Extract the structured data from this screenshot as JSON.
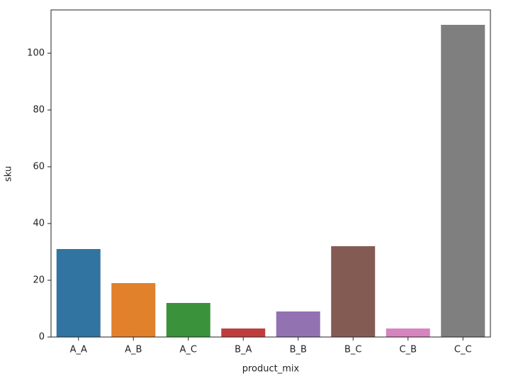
{
  "chart_data": {
    "type": "bar",
    "x_label": "product_mix",
    "y_label": "sku",
    "categories": [
      "A_A",
      "A_B",
      "A_C",
      "B_A",
      "B_B",
      "B_C",
      "C_B",
      "C_C"
    ],
    "values": [
      31,
      19,
      12,
      3,
      9,
      32,
      3,
      110
    ],
    "colors": [
      "#3274a1",
      "#e1812c",
      "#3a923a",
      "#c03d3e",
      "#9372b2",
      "#845b53",
      "#d684bd",
      "#7f7f7f"
    ],
    "ylim": [
      0,
      115.25
    ],
    "yticks": [
      0,
      20,
      40,
      60,
      80,
      100
    ],
    "grid": false
  }
}
